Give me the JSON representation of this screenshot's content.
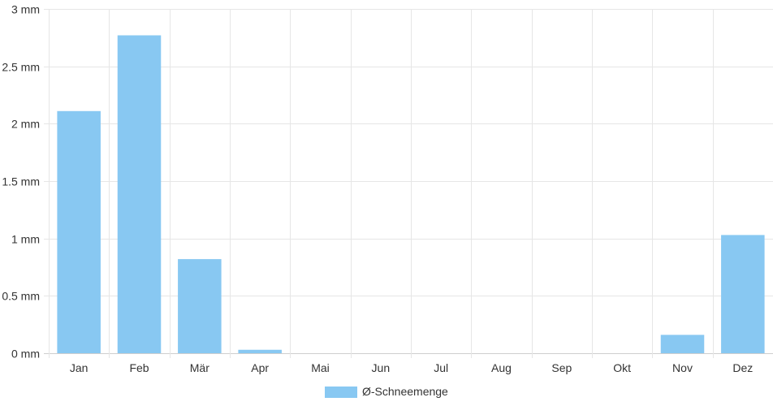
{
  "chart_data": {
    "type": "bar",
    "categories": [
      "Jan",
      "Feb",
      "Mär",
      "Apr",
      "Mai",
      "Jun",
      "Jul",
      "Aug",
      "Sep",
      "Okt",
      "Nov",
      "Dez"
    ],
    "series": [
      {
        "name": "Ø-Schneemenge",
        "values": [
          2.11,
          2.77,
          0.82,
          0.03,
          0,
          0,
          0,
          0,
          0,
          0,
          0.16,
          1.03
        ],
        "color": "#88c8f2"
      }
    ],
    "yticks": [
      "0 mm",
      "0.5 mm",
      "1 mm",
      "1.5 mm",
      "2 mm",
      "2.5 mm",
      "3 mm"
    ],
    "ylim": [
      0,
      3
    ],
    "unit": "mm",
    "grid": true,
    "legend_position": "bottom-center",
    "title": "",
    "xlabel": "",
    "ylabel": ""
  }
}
